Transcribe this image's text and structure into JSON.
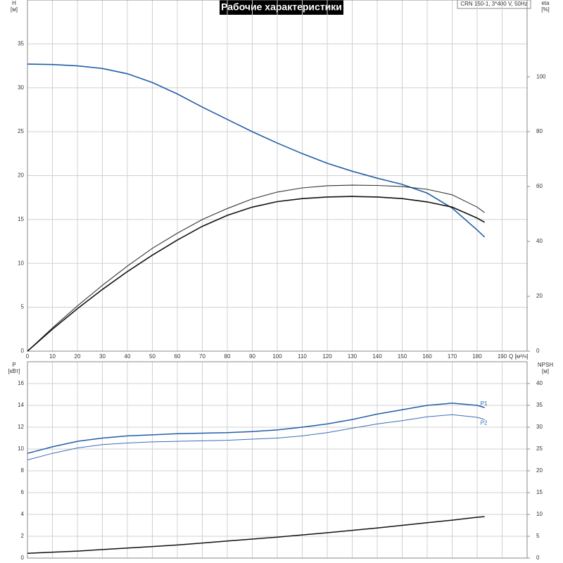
{
  "chart_data": [
    {
      "type": "line",
      "title": "Рабочие характеристики",
      "subtitle": "CRN 150-1, 3*400 V, 50Hz",
      "ylabel": "H",
      "yunit": "[м]",
      "y2label": "eta",
      "y2unit": "[%]",
      "xlabel": "Q [м³/ч]",
      "x": [
        0,
        10,
        20,
        30,
        40,
        50,
        60,
        70,
        80,
        90,
        100,
        110,
        120,
        130,
        140,
        150,
        160,
        170,
        180,
        183
      ],
      "xlim": [
        0,
        200
      ],
      "xticks": [
        0,
        10,
        20,
        30,
        40,
        50,
        60,
        70,
        80,
        90,
        100,
        110,
        120,
        130,
        140,
        150,
        160,
        170,
        180,
        190
      ],
      "ylim": [
        0,
        40
      ],
      "yticks": [
        0,
        5,
        10,
        15,
        20,
        25,
        30,
        35
      ],
      "y2lim": [
        0,
        128
      ],
      "y2ticks": [
        0,
        20,
        40,
        60,
        80,
        100
      ],
      "grid": true,
      "series": [
        {
          "color": "#1f5ea8",
          "width": 1.6,
          "values": [
            32.7,
            32.65,
            32.5,
            32.2,
            31.6,
            30.6,
            29.3,
            27.8,
            26.4,
            25,
            23.7,
            22.5,
            21.4,
            20.5,
            19.7,
            19,
            18,
            16.3,
            13.8,
            13
          ]
        },
        {
          "color": "#333333",
          "width": 1.1,
          "axis": "y2",
          "values": [
            0,
            8.5,
            16.5,
            24,
            31,
            37.5,
            43,
            48,
            52,
            55.5,
            58,
            59.5,
            60.3,
            60.5,
            60.4,
            60,
            59,
            57,
            52.5,
            50.5
          ]
        },
        {
          "color": "#111111",
          "width": 1.6,
          "axis": "y2",
          "values": [
            0,
            8,
            15.5,
            22.5,
            29,
            35,
            40.5,
            45.5,
            49.5,
            52.5,
            54.5,
            55.6,
            56.2,
            56.4,
            56.2,
            55.6,
            54.4,
            52.5,
            48.5,
            47
          ]
        }
      ]
    },
    {
      "type": "line",
      "ylabel": "P",
      "yunit": "[кВт]",
      "y2label": "NPSH",
      "y2unit": "[м]",
      "x": [
        0,
        10,
        20,
        30,
        40,
        50,
        60,
        70,
        80,
        90,
        100,
        110,
        120,
        130,
        140,
        150,
        160,
        170,
        180,
        183
      ],
      "xlim": [
        0,
        200
      ],
      "xticks": [
        0,
        10,
        20,
        30,
        40,
        50,
        60,
        70,
        80,
        90,
        100,
        110,
        120,
        130,
        140,
        150,
        160,
        170,
        180,
        190
      ],
      "ylim": [
        0,
        18
      ],
      "yticks": [
        0,
        2,
        4,
        6,
        8,
        10,
        12,
        14,
        16
      ],
      "y2lim": [
        0,
        45
      ],
      "y2ticks": [
        0,
        5,
        10,
        15,
        20,
        25,
        30,
        35,
        40
      ],
      "grid": true,
      "series": [
        {
          "name": "P1",
          "color": "#1f5ea8",
          "width": 1.5,
          "values": [
            9.6,
            10.2,
            10.7,
            11,
            11.2,
            11.3,
            11.4,
            11.45,
            11.5,
            11.6,
            11.75,
            12,
            12.3,
            12.7,
            13.2,
            13.6,
            14,
            14.2,
            14,
            13.8
          ]
        },
        {
          "name": "P2",
          "color": "#3a6db5",
          "width": 1,
          "values": [
            9,
            9.6,
            10.1,
            10.4,
            10.55,
            10.65,
            10.7,
            10.75,
            10.8,
            10.9,
            11,
            11.2,
            11.5,
            11.9,
            12.3,
            12.6,
            12.95,
            13.15,
            12.9,
            12.7
          ]
        },
        {
          "color": "#111111",
          "width": 1.5,
          "axis": "y2",
          "values": [
            1.1,
            1.35,
            1.6,
            1.95,
            2.3,
            2.65,
            3,
            3.45,
            3.9,
            4.35,
            4.8,
            5.3,
            5.8,
            6.35,
            6.9,
            7.5,
            8.1,
            8.7,
            9.35,
            9.5
          ]
        }
      ]
    }
  ]
}
